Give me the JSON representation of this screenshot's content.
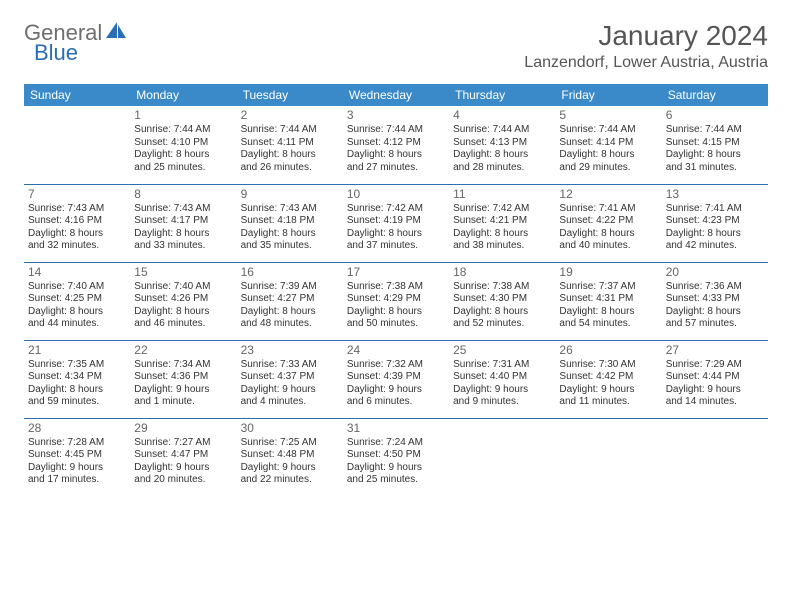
{
  "logo": {
    "part1": "General",
    "part2": "Blue"
  },
  "title": "January 2024",
  "location": "Lanzendorf, Lower Austria, Austria",
  "table": {
    "columns": [
      "Sunday",
      "Monday",
      "Tuesday",
      "Wednesday",
      "Thursday",
      "Friday",
      "Saturday"
    ],
    "header_bg": "#3a8ac9",
    "header_fg": "#ffffff",
    "sep_color": "#2a6fb5",
    "rows": [
      [
        null,
        {
          "d": "1",
          "sr": "7:44 AM",
          "ss": "4:10 PM",
          "dl1": "8 hours",
          "dl2": "and 25 minutes."
        },
        {
          "d": "2",
          "sr": "7:44 AM",
          "ss": "4:11 PM",
          "dl1": "8 hours",
          "dl2": "and 26 minutes."
        },
        {
          "d": "3",
          "sr": "7:44 AM",
          "ss": "4:12 PM",
          "dl1": "8 hours",
          "dl2": "and 27 minutes."
        },
        {
          "d": "4",
          "sr": "7:44 AM",
          "ss": "4:13 PM",
          "dl1": "8 hours",
          "dl2": "and 28 minutes."
        },
        {
          "d": "5",
          "sr": "7:44 AM",
          "ss": "4:14 PM",
          "dl1": "8 hours",
          "dl2": "and 29 minutes."
        },
        {
          "d": "6",
          "sr": "7:44 AM",
          "ss": "4:15 PM",
          "dl1": "8 hours",
          "dl2": "and 31 minutes."
        }
      ],
      [
        {
          "d": "7",
          "sr": "7:43 AM",
          "ss": "4:16 PM",
          "dl1": "8 hours",
          "dl2": "and 32 minutes."
        },
        {
          "d": "8",
          "sr": "7:43 AM",
          "ss": "4:17 PM",
          "dl1": "8 hours",
          "dl2": "and 33 minutes."
        },
        {
          "d": "9",
          "sr": "7:43 AM",
          "ss": "4:18 PM",
          "dl1": "8 hours",
          "dl2": "and 35 minutes."
        },
        {
          "d": "10",
          "sr": "7:42 AM",
          "ss": "4:19 PM",
          "dl1": "8 hours",
          "dl2": "and 37 minutes."
        },
        {
          "d": "11",
          "sr": "7:42 AM",
          "ss": "4:21 PM",
          "dl1": "8 hours",
          "dl2": "and 38 minutes."
        },
        {
          "d": "12",
          "sr": "7:41 AM",
          "ss": "4:22 PM",
          "dl1": "8 hours",
          "dl2": "and 40 minutes."
        },
        {
          "d": "13",
          "sr": "7:41 AM",
          "ss": "4:23 PM",
          "dl1": "8 hours",
          "dl2": "and 42 minutes."
        }
      ],
      [
        {
          "d": "14",
          "sr": "7:40 AM",
          "ss": "4:25 PM",
          "dl1": "8 hours",
          "dl2": "and 44 minutes."
        },
        {
          "d": "15",
          "sr": "7:40 AM",
          "ss": "4:26 PM",
          "dl1": "8 hours",
          "dl2": "and 46 minutes."
        },
        {
          "d": "16",
          "sr": "7:39 AM",
          "ss": "4:27 PM",
          "dl1": "8 hours",
          "dl2": "and 48 minutes."
        },
        {
          "d": "17",
          "sr": "7:38 AM",
          "ss": "4:29 PM",
          "dl1": "8 hours",
          "dl2": "and 50 minutes."
        },
        {
          "d": "18",
          "sr": "7:38 AM",
          "ss": "4:30 PM",
          "dl1": "8 hours",
          "dl2": "and 52 minutes."
        },
        {
          "d": "19",
          "sr": "7:37 AM",
          "ss": "4:31 PM",
          "dl1": "8 hours",
          "dl2": "and 54 minutes."
        },
        {
          "d": "20",
          "sr": "7:36 AM",
          "ss": "4:33 PM",
          "dl1": "8 hours",
          "dl2": "and 57 minutes."
        }
      ],
      [
        {
          "d": "21",
          "sr": "7:35 AM",
          "ss": "4:34 PM",
          "dl1": "8 hours",
          "dl2": "and 59 minutes."
        },
        {
          "d": "22",
          "sr": "7:34 AM",
          "ss": "4:36 PM",
          "dl1": "9 hours",
          "dl2": "and 1 minute."
        },
        {
          "d": "23",
          "sr": "7:33 AM",
          "ss": "4:37 PM",
          "dl1": "9 hours",
          "dl2": "and 4 minutes."
        },
        {
          "d": "24",
          "sr": "7:32 AM",
          "ss": "4:39 PM",
          "dl1": "9 hours",
          "dl2": "and 6 minutes."
        },
        {
          "d": "25",
          "sr": "7:31 AM",
          "ss": "4:40 PM",
          "dl1": "9 hours",
          "dl2": "and 9 minutes."
        },
        {
          "d": "26",
          "sr": "7:30 AM",
          "ss": "4:42 PM",
          "dl1": "9 hours",
          "dl2": "and 11 minutes."
        },
        {
          "d": "27",
          "sr": "7:29 AM",
          "ss": "4:44 PM",
          "dl1": "9 hours",
          "dl2": "and 14 minutes."
        }
      ],
      [
        {
          "d": "28",
          "sr": "7:28 AM",
          "ss": "4:45 PM",
          "dl1": "9 hours",
          "dl2": "and 17 minutes."
        },
        {
          "d": "29",
          "sr": "7:27 AM",
          "ss": "4:47 PM",
          "dl1": "9 hours",
          "dl2": "and 20 minutes."
        },
        {
          "d": "30",
          "sr": "7:25 AM",
          "ss": "4:48 PM",
          "dl1": "9 hours",
          "dl2": "and 22 minutes."
        },
        {
          "d": "31",
          "sr": "7:24 AM",
          "ss": "4:50 PM",
          "dl1": "9 hours",
          "dl2": "and 25 minutes."
        },
        null,
        null,
        null
      ]
    ]
  },
  "labels": {
    "sunrise": "Sunrise: ",
    "sunset": "Sunset: ",
    "daylight": "Daylight: "
  }
}
